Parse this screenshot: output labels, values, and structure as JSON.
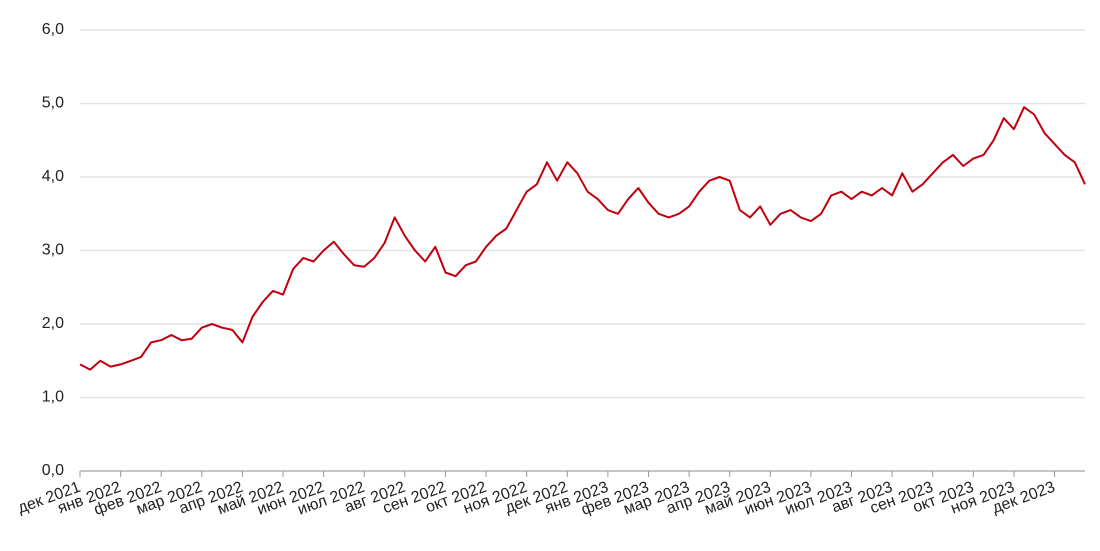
{
  "chart_data": {
    "type": "line",
    "categories": [
      "дек 2021",
      null,
      null,
      null,
      "янв 2022",
      null,
      null,
      null,
      "фев 2022",
      null,
      null,
      null,
      "мар 2022",
      null,
      null,
      null,
      "апр 2022",
      null,
      null,
      null,
      "май 2022",
      null,
      null,
      null,
      "июн 2022",
      null,
      null,
      null,
      "июл 2022",
      null,
      null,
      null,
      "авг 2022",
      null,
      null,
      null,
      "сен 2022",
      null,
      null,
      null,
      "окт 2022",
      null,
      null,
      null,
      "ноя 2022",
      null,
      null,
      null,
      "дек 2022",
      null,
      null,
      null,
      "янв 2023",
      null,
      null,
      null,
      "фев 2023",
      null,
      null,
      null,
      "мар 2023",
      null,
      null,
      null,
      "апр 2023",
      null,
      null,
      null,
      "май 2023",
      null,
      null,
      null,
      "июн 2023",
      null,
      null,
      null,
      "июл 2023",
      null,
      null,
      null,
      "авг 2023",
      null,
      null,
      null,
      "сен 2023",
      null,
      null,
      null,
      "окт 2023",
      null,
      null,
      null,
      "ноя 2023",
      null,
      null,
      null,
      "дек 2023",
      null,
      null,
      null
    ],
    "values": [
      1.45,
      1.38,
      1.5,
      1.42,
      1.45,
      1.5,
      1.55,
      1.75,
      1.78,
      1.85,
      1.78,
      1.8,
      1.95,
      2.0,
      1.95,
      1.92,
      1.75,
      2.1,
      2.3,
      2.45,
      2.4,
      2.75,
      2.9,
      2.85,
      3.0,
      3.12,
      2.95,
      2.8,
      2.78,
      2.9,
      3.1,
      3.45,
      3.2,
      3.0,
      2.85,
      3.05,
      2.7,
      2.65,
      2.8,
      2.85,
      3.05,
      3.2,
      3.3,
      3.55,
      3.8,
      3.9,
      4.2,
      3.95,
      4.2,
      4.05,
      3.8,
      3.7,
      3.55,
      3.5,
      3.7,
      3.85,
      3.65,
      3.5,
      3.45,
      3.5,
      3.6,
      3.8,
      3.95,
      4.0,
      3.95,
      3.55,
      3.45,
      3.6,
      3.35,
      3.5,
      3.55,
      3.45,
      3.4,
      3.5,
      3.75,
      3.8,
      3.7,
      3.8,
      3.75,
      3.85,
      3.75,
      4.05,
      3.8,
      3.9,
      4.05,
      4.2,
      4.3,
      4.15,
      4.25,
      4.3,
      4.5,
      4.8,
      4.65,
      4.95,
      4.85,
      4.6,
      4.45,
      4.3,
      4.2,
      3.9
    ],
    "color": "#c00010",
    "ylim": [
      0,
      6
    ],
    "yticks": [
      {
        "value": 0,
        "label": "0,0"
      },
      {
        "value": 1,
        "label": "1,0"
      },
      {
        "value": 2,
        "label": "2,0"
      },
      {
        "value": 3,
        "label": "3,0"
      },
      {
        "value": 4,
        "label": "4,0"
      },
      {
        "value": 5,
        "label": "5,0"
      },
      {
        "value": 6,
        "label": "6,0"
      }
    ],
    "grid": true
  }
}
